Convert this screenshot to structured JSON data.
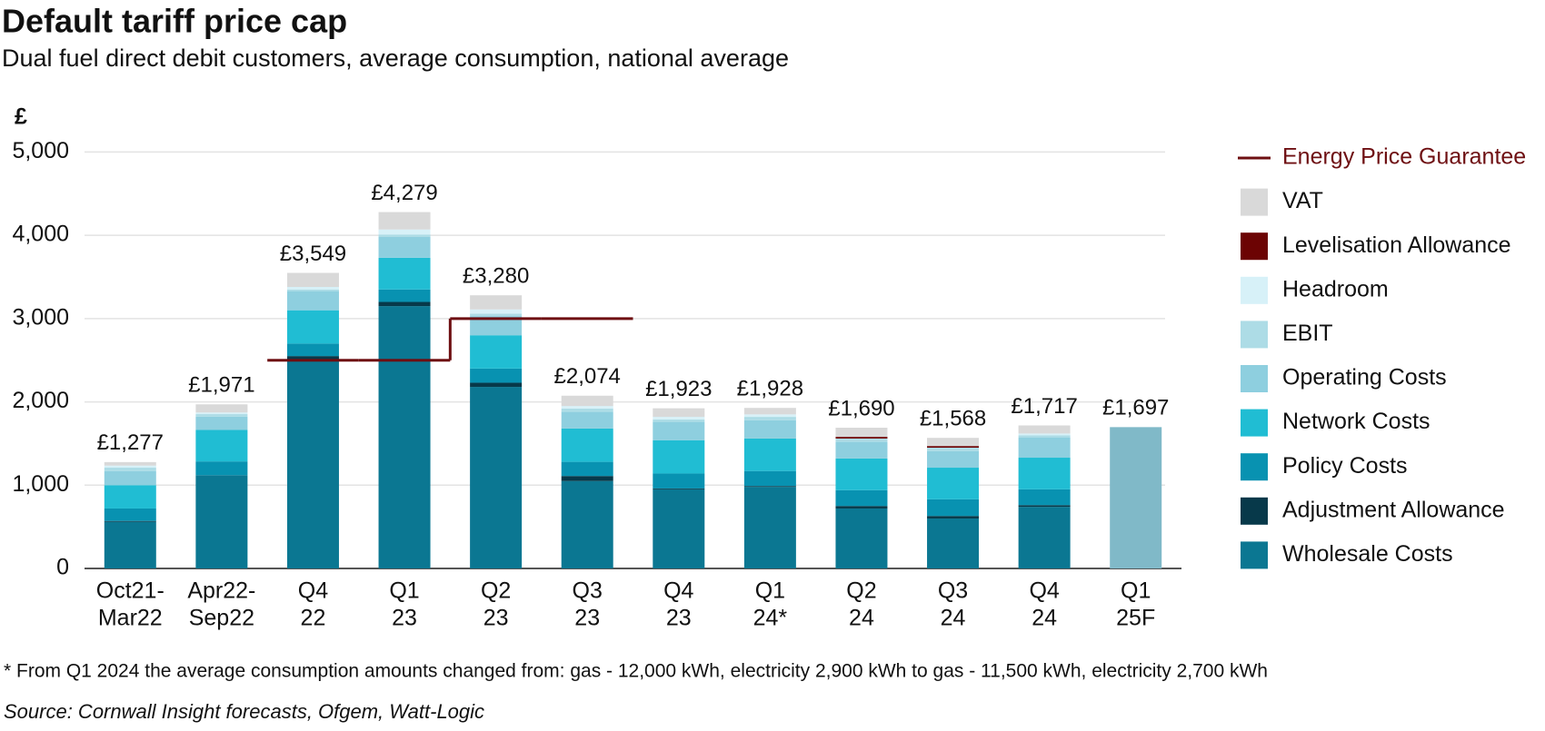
{
  "chart_data": {
    "type": "bar",
    "stacked": true,
    "title": "Default tariff price cap",
    "subtitle": "Dual fuel direct debit customers, average consumption, national average",
    "y_label": "£",
    "footnote": "* From Q1 2024 the average consumption amounts changed from: gas - 12,000 kWh, electricity 2,900 kWh to gas - 11,500 kWh, electricity 2,700 kWh",
    "source": "Source: Cornwall Insight forecasts, Ofgem, Watt-Logic",
    "categories": [
      [
        "Oct21-",
        "Mar22"
      ],
      [
        "Apr22-",
        "Sep22"
      ],
      [
        "Q4",
        "22"
      ],
      [
        "Q1",
        "23"
      ],
      [
        "Q2",
        "23"
      ],
      [
        "Q3",
        "23"
      ],
      [
        "Q4",
        "23"
      ],
      [
        "Q1",
        "24*"
      ],
      [
        "Q2",
        "24"
      ],
      [
        "Q3",
        "24"
      ],
      [
        "Q4",
        "24"
      ],
      [
        "Q1",
        "25F"
      ]
    ],
    "series": [
      {
        "name": "Wholesale Costs",
        "color": "#0b7792",
        "values": [
          560,
          1120,
          2500,
          3150,
          2180,
          1050,
          950,
          980,
          720,
          600,
          740,
          null
        ]
      },
      {
        "name": "Adjustment Allowance",
        "color": "#07394a",
        "values": [
          10,
          0,
          50,
          50,
          50,
          60,
          10,
          10,
          30,
          30,
          20,
          null
        ]
      },
      {
        "name": "Policy Costs",
        "color": "#0892b1",
        "values": [
          150,
          165,
          150,
          150,
          170,
          170,
          180,
          180,
          190,
          200,
          190,
          null
        ]
      },
      {
        "name": "Network Costs",
        "color": "#20bdd3",
        "values": [
          280,
          378,
          400,
          380,
          400,
          400,
          400,
          390,
          380,
          380,
          380,
          null
        ]
      },
      {
        "name": "Operating Costs",
        "color": "#8ecfdf",
        "values": [
          170,
          160,
          230,
          250,
          230,
          200,
          220,
          220,
          200,
          200,
          240,
          null
        ]
      },
      {
        "name": "EBIT",
        "color": "#addce6",
        "values": [
          40,
          30,
          20,
          30,
          30,
          40,
          30,
          40,
          40,
          40,
          30,
          null
        ]
      },
      {
        "name": "Headroom",
        "color": "#d7f1f8",
        "values": [
          25,
          20,
          30,
          60,
          50,
          30,
          30,
          30,
          0,
          0,
          20,
          null
        ]
      },
      {
        "name": "Levelisation Allowance",
        "color": "#6c0303",
        "values": [
          0,
          0,
          0,
          0,
          0,
          0,
          0,
          0,
          20,
          20,
          0,
          null
        ]
      },
      {
        "name": "VAT",
        "color": "#d9d9d9",
        "values": [
          42,
          98,
          169,
          209,
          170,
          124,
          103,
          78,
          110,
          98,
          97,
          null
        ]
      }
    ],
    "totals": {
      "values": [
        1277,
        1971,
        3549,
        4279,
        3280,
        2074,
        1923,
        1928,
        1690,
        1568,
        1717,
        1697
      ],
      "value_labels": [
        "£1,277",
        "£1,971",
        "£3,549",
        "£4,279",
        "£3,280",
        "£2,074",
        "£1,923",
        "£1,928",
        "£1,690",
        "£1,568",
        "£1,717",
        "£1,697"
      ]
    },
    "forecast_color": "#80b9c8",
    "line_series": {
      "name": "Energy Price Guarantee",
      "color": "#6e0f12",
      "values": [
        null,
        null,
        2500,
        2500,
        3000,
        3000,
        null,
        null,
        null,
        null,
        null,
        null
      ]
    },
    "ylim": [
      0,
      5200
    ],
    "yticks": [
      0,
      {
        "value": 1000,
        "label": "1,000"
      },
      {
        "value": 2000,
        "label": "2,000"
      },
      {
        "value": 3000,
        "label": "3,000"
      },
      {
        "value": 4000,
        "label": "4,000"
      },
      {
        "value": 5000,
        "label": "5,000"
      }
    ],
    "grid": true,
    "legend": "right"
  }
}
